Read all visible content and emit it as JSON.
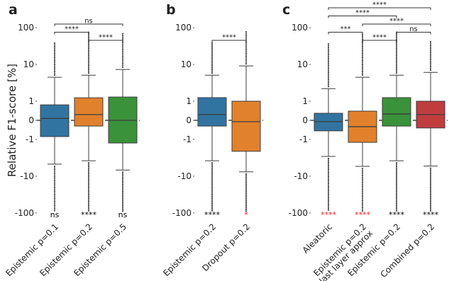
{
  "chart_data": [
    {
      "type": "box",
      "title": "a",
      "ylabel": "Relative F1-score [%]",
      "yscale": "symlog",
      "linthresh": 1,
      "linscale": 0.52,
      "ylim": [
        -120,
        120
      ],
      "yticks": [
        -100,
        -10,
        -1,
        0,
        1,
        10,
        100
      ],
      "reference_line": 0,
      "boxes": [
        {
          "label": [
            "Epistemic p=0.1"
          ],
          "color": "#3274a1",
          "whislo": -4.7,
          "q1": -0.85,
          "med": 0.1,
          "q3": 0.81,
          "whishi": 4.5,
          "flier_min": -90,
          "flier_max": 39,
          "sig": "ns",
          "sig_color": "#000000"
        },
        {
          "label": [
            "Epistemic p=0.2"
          ],
          "color": "#e1812c",
          "whislo": -3.8,
          "q1": -0.3,
          "med": 0.3,
          "q3": 1.24,
          "whishi": 5.1,
          "flier_min": -90,
          "flier_max": 76,
          "sig": "****",
          "sig_color": "#000000"
        },
        {
          "label": [
            "Epistemic p=0.5"
          ],
          "color": "#3a923a",
          "whislo": -6.8,
          "q1": -1.25,
          "med": 0,
          "q3": 1.3,
          "whishi": 7.3,
          "flier_min": -90,
          "flier_max": 76,
          "sig": "ns",
          "sig_color": "#000000"
        }
      ],
      "brackets": [
        {
          "from": 1,
          "to": 2,
          "label": "****"
        },
        {
          "from": 0,
          "to": 1,
          "label": "****"
        },
        {
          "from": 0,
          "to": 2,
          "label": "ns"
        }
      ]
    },
    {
      "type": "box",
      "title": "b",
      "yscale": "symlog",
      "linthresh": 1,
      "linscale": 0.52,
      "ylim": [
        -120,
        120
      ],
      "yticks": [
        -100,
        -10,
        -1,
        0,
        1,
        10,
        100
      ],
      "reference_line": 0,
      "boxes": [
        {
          "label": [
            "Epistemic p=0.2"
          ],
          "color": "#3274a1",
          "whislo": -3.8,
          "q1": -0.3,
          "med": 0.3,
          "q3": 1.25,
          "whishi": 5.1,
          "flier_min": -90,
          "flier_max": 39,
          "sig": "****",
          "sig_color": "#000000"
        },
        {
          "label": [
            "Dropout p=0.2"
          ],
          "color": "#e1812c",
          "whislo": -7.6,
          "q1": -2.1,
          "med": -0.07,
          "q3": 1.0,
          "whishi": 9.1,
          "flier_min": -95,
          "flier_max": 85,
          "sig": "*",
          "sig_color": "#e8202a"
        }
      ],
      "brackets": [
        {
          "from": 0,
          "to": 1,
          "label": "****"
        }
      ]
    },
    {
      "type": "box",
      "title": "c",
      "yscale": "symlog",
      "linthresh": 1,
      "linscale": 0.52,
      "ylim": [
        -120,
        120
      ],
      "yticks": [
        -100,
        -10,
        -1,
        0,
        1,
        10,
        100
      ],
      "reference_line": 0,
      "boxes": [
        {
          "label": [
            "Aleatoric"
          ],
          "color": "#3274a1",
          "whislo": -2.9,
          "q1": -0.55,
          "med": -0.07,
          "q3": 0.37,
          "whishi": 2.2,
          "flier_min": -90,
          "flier_max": 39,
          "sig": "****",
          "sig_color": "#e8202a"
        },
        {
          "label": [
            "Epistemic p=0.2",
            "last layer approx"
          ],
          "color": "#e1812c",
          "whislo": -5.4,
          "q1": -1.2,
          "med": -0.33,
          "q3": 0.48,
          "whishi": 4.5,
          "flier_min": -90,
          "flier_max": 70,
          "sig": "****",
          "sig_color": "#e8202a"
        },
        {
          "label": [
            "Epistemic p=0.2"
          ],
          "color": "#3a923a",
          "whislo": -3.8,
          "q1": -0.3,
          "med": 0.33,
          "q3": 1.25,
          "whishi": 5.1,
          "flier_min": -90,
          "flier_max": 76,
          "sig": "****",
          "sig_color": "#000000"
        },
        {
          "label": [
            "Combined p=0.2"
          ],
          "color": "#c03d3e",
          "whislo": -5.3,
          "q1": -0.4,
          "med": 0.3,
          "q3": 1.0,
          "whishi": 6.1,
          "flier_min": -90,
          "flier_max": 43,
          "sig": "****",
          "sig_color": "#000000"
        }
      ],
      "brackets": [
        {
          "from": 1,
          "to": 2,
          "label": "****"
        },
        {
          "from": 0,
          "to": 1,
          "label": "***"
        },
        {
          "from": 2,
          "to": 3,
          "label": "ns"
        },
        {
          "from": 1,
          "to": 3,
          "label": "****"
        },
        {
          "from": 0,
          "to": 2,
          "label": "****"
        },
        {
          "from": 0,
          "to": 3,
          "label": "****"
        }
      ]
    }
  ]
}
